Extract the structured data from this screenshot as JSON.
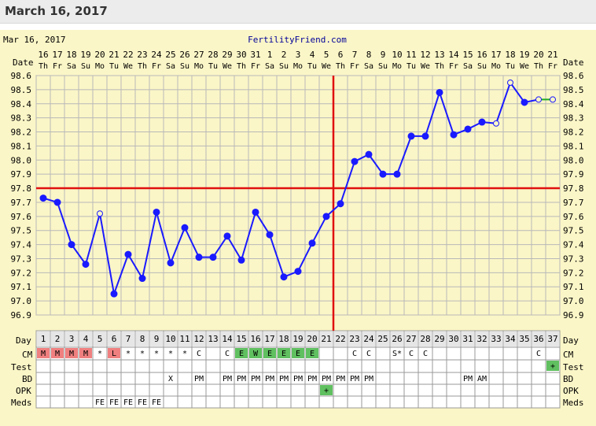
{
  "header": {
    "title": "March 16, 2017"
  },
  "chart_meta": {
    "date_text": "Mar 16, 2017",
    "site": "FertilityFriend.com",
    "colors": {
      "background": "#fbf6c7",
      "line": "#1a1aff",
      "coverline": "#e01010",
      "grid": "#b8b8b8",
      "menses": "#f08080",
      "fertile": "#60c060",
      "accent": "#000099"
    }
  },
  "row_labels": {
    "date": "Date",
    "day": "Day",
    "cm": "CM",
    "test": "Test",
    "bd": "BD",
    "opk": "OPK",
    "meds": "Meds"
  },
  "chart_data": {
    "type": "line",
    "title": "",
    "xlabel": "Day",
    "ylabel": "",
    "ylim": [
      96.9,
      98.6
    ],
    "yticks": [
      "98.6",
      "98.5",
      "98.4",
      "98.3",
      "98.2",
      "98.1",
      "98.0",
      "97.9",
      "97.8",
      "97.7",
      "97.6",
      "97.5",
      "97.4",
      "97.3",
      "97.2",
      "97.1",
      "97.0",
      "96.9"
    ],
    "dates": [
      "16",
      "17",
      "18",
      "19",
      "20",
      "21",
      "22",
      "23",
      "24",
      "25",
      "26",
      "27",
      "28",
      "29",
      "30",
      "31",
      "1",
      "2",
      "3",
      "4",
      "5",
      "6",
      "7",
      "8",
      "9",
      "10",
      "11",
      "12",
      "13",
      "14",
      "15",
      "16",
      "17",
      "18",
      "19",
      "20",
      "21"
    ],
    "weekdays": [
      "Th",
      "Fr",
      "Sa",
      "Su",
      "Mo",
      "Tu",
      "We",
      "Th",
      "Fr",
      "Sa",
      "Su",
      "Mo",
      "Tu",
      "We",
      "Th",
      "Fr",
      "Sa",
      "Su",
      "Mo",
      "Tu",
      "We",
      "Th",
      "Fr",
      "Sa",
      "Su",
      "Mo",
      "Tu",
      "We",
      "Th",
      "Fr",
      "Sa",
      "Su",
      "Mo",
      "Tu",
      "We",
      "Th",
      "Fr"
    ],
    "days": [
      "1",
      "2",
      "3",
      "4",
      "5",
      "6",
      "7",
      "8",
      "9",
      "10",
      "11",
      "12",
      "13",
      "14",
      "15",
      "16",
      "17",
      "18",
      "19",
      "20",
      "21",
      "22",
      "23",
      "24",
      "25",
      "26",
      "27",
      "28",
      "29",
      "30",
      "31",
      "32",
      "33",
      "34",
      "35",
      "36",
      "37"
    ],
    "temps": [
      97.73,
      97.7,
      97.4,
      97.26,
      97.62,
      97.05,
      97.33,
      97.16,
      97.63,
      97.27,
      97.52,
      97.31,
      97.31,
      97.46,
      97.29,
      97.63,
      97.47,
      97.17,
      97.21,
      97.41,
      97.6,
      97.69,
      97.99,
      98.04,
      97.9,
      97.9,
      98.17,
      98.17,
      98.48,
      98.18,
      98.22,
      98.27,
      98.26,
      98.55,
      98.41,
      98.43,
      98.43
    ],
    "open_points": [
      4,
      32,
      33,
      35,
      36
    ],
    "green_segment": [
      35,
      36
    ],
    "coverline": 97.8,
    "ovulation_after_day": "21",
    "cm": [
      "M",
      "M",
      "M",
      "M",
      "*",
      "L",
      "*",
      "*",
      "*",
      "*",
      "*",
      "C",
      "",
      "C",
      "E",
      "W",
      "E",
      "E",
      "E",
      "E",
      "",
      "",
      "C",
      "C",
      "",
      "S*",
      "C",
      "C",
      "",
      "",
      "",
      "",
      "",
      "",
      "",
      "C",
      ""
    ],
    "cm_types": [
      "menses",
      "menses",
      "menses",
      "menses",
      "",
      "menses",
      "",
      "",
      "",
      "",
      "",
      "",
      "",
      "",
      "fertile",
      "fertile",
      "fertile",
      "fertile",
      "fertile",
      "fertile",
      "",
      "",
      "",
      "",
      "",
      "",
      "",
      "",
      "",
      "",
      "",
      "",
      "",
      "",
      "",
      "",
      ""
    ],
    "test": [
      "",
      "",
      "",
      "",
      "",
      "",
      "",
      "",
      "",
      "",
      "",
      "",
      "",
      "",
      "",
      "",
      "",
      "",
      "",
      "",
      "",
      "",
      "",
      "",
      "",
      "",
      "",
      "",
      "",
      "",
      "",
      "",
      "",
      "",
      "",
      "",
      "+"
    ],
    "bd": [
      "",
      "",
      "",
      "",
      "",
      "",
      "",
      "",
      "",
      "X",
      "",
      "PM",
      "",
      "PM",
      "PM",
      "PM",
      "PM",
      "PM",
      "PM",
      "PM",
      "PM",
      "PM",
      "PM",
      "PM",
      "",
      "",
      "",
      "",
      "",
      "",
      "PM",
      "AM",
      "",
      "",
      "",
      "",
      ""
    ],
    "opk": [
      "",
      "",
      "",
      "",
      "",
      "",
      "",
      "",
      "",
      "",
      "",
      "",
      "",
      "",
      "",
      "",
      "",
      "",
      "",
      "",
      "+",
      "",
      "",
      "",
      "",
      "",
      "",
      "",
      "",
      "",
      "",
      "",
      "",
      "",
      "",
      "",
      ""
    ],
    "meds": [
      "",
      "",
      "",
      "",
      "FE",
      "FE",
      "FE",
      "FE",
      "FE",
      "",
      "",
      "",
      "",
      "",
      "",
      "",
      "",
      "",
      "",
      "",
      "",
      "",
      "",
      "",
      "",
      "",
      "",
      "",
      "",
      "",
      "",
      "",
      "",
      "",
      "",
      "",
      ""
    ]
  }
}
